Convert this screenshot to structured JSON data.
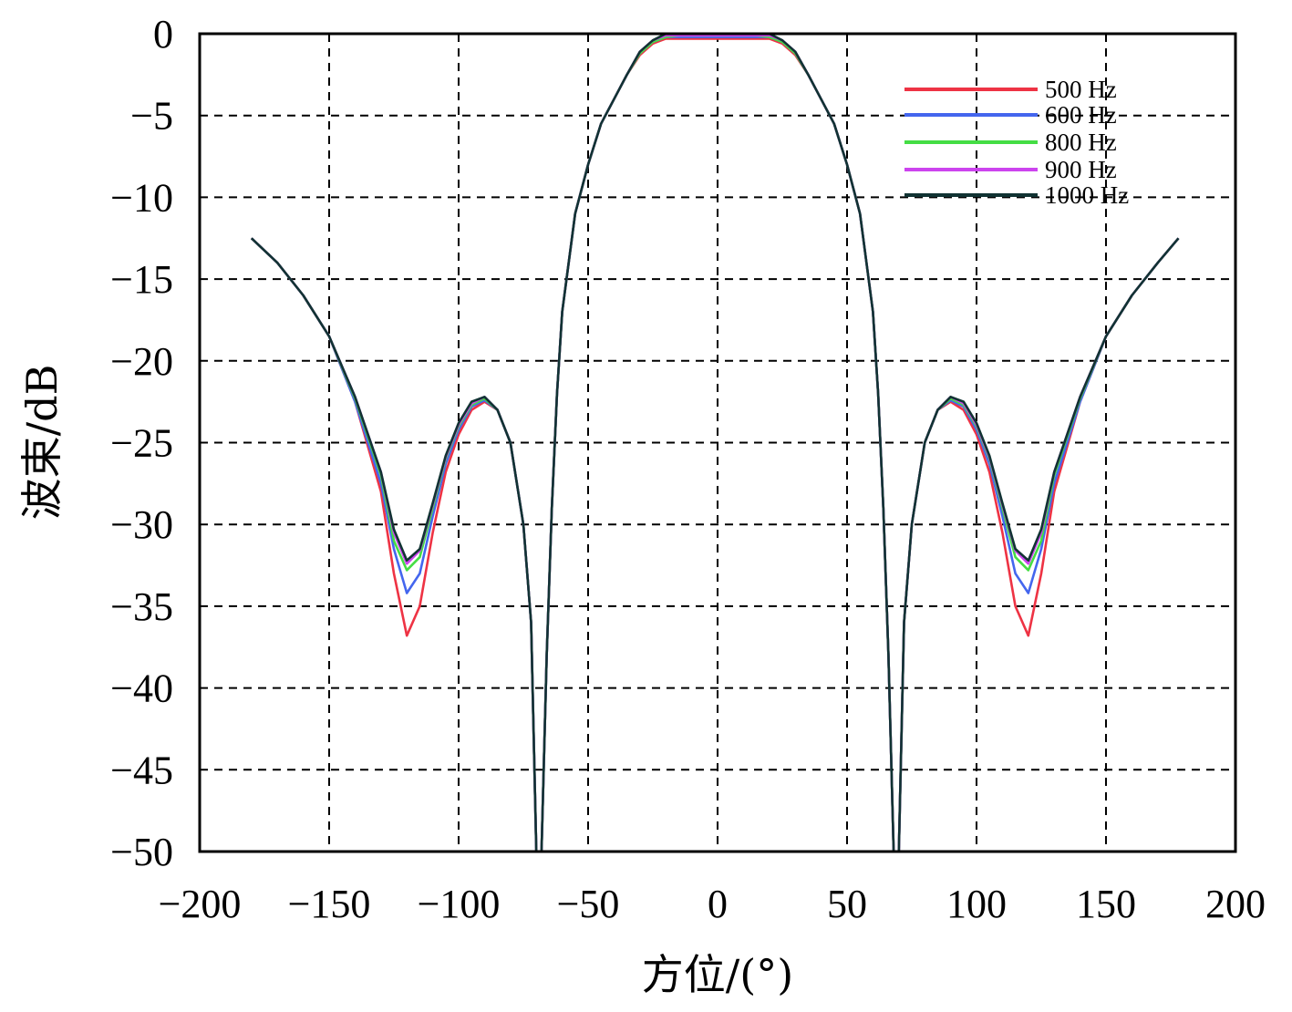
{
  "chart_data": {
    "type": "line",
    "xlabel": "方位/(°)",
    "ylabel": "波束/dB",
    "xlim": [
      -200,
      200
    ],
    "ylim": [
      -50,
      0
    ],
    "x_ticks": [
      "−200",
      "−150",
      "−100",
      "−50",
      "0",
      "50",
      "100",
      "150",
      "200"
    ],
    "y_ticks": [
      "0",
      "−5",
      "−10",
      "−15",
      "−20",
      "−25",
      "−30",
      "−35",
      "−40",
      "−45",
      "−50"
    ],
    "grid": true,
    "legend_position": "top-right",
    "x": [
      -180,
      -170,
      -160,
      -150,
      -140,
      -130,
      -125,
      -120,
      -115,
      -110,
      -105,
      -100,
      -95,
      -90,
      -85,
      -80,
      -75,
      -72,
      -70,
      -68,
      -66,
      -64,
      -62,
      -60,
      -55,
      -50,
      -45,
      -40,
      -35,
      -30,
      -25,
      -20,
      -15,
      -10,
      -5,
      0,
      5,
      10,
      15,
      20,
      25,
      30,
      35,
      40,
      45,
      50,
      55,
      60,
      62,
      64,
      66,
      68,
      70,
      72,
      75,
      80,
      85,
      90,
      95,
      100,
      105,
      110,
      115,
      120,
      125,
      130,
      140,
      150,
      160,
      170,
      178
    ],
    "series": [
      {
        "name": "500 Hz",
        "color": "#ee3344",
        "values": [
          -12.5,
          -14,
          -16,
          -18.5,
          -22.5,
          -28,
          -33,
          -36.8,
          -35,
          -30.5,
          -26.8,
          -24.5,
          -23,
          -22.5,
          -23,
          -25,
          -30,
          -36,
          -50,
          -50,
          -38,
          -29,
          -22,
          -17,
          -11,
          -8,
          -5.5,
          -4,
          -2.5,
          -1.3,
          -0.6,
          -0.3,
          -0.3,
          -0.3,
          -0.3,
          -0.3,
          -0.3,
          -0.3,
          -0.3,
          -0.3,
          -0.6,
          -1.3,
          -2.5,
          -4,
          -5.5,
          -8,
          -11,
          -17,
          -22,
          -29,
          -38,
          -50,
          -50,
          -36,
          -30,
          -25,
          -23,
          -22.5,
          -23,
          -24.5,
          -26.8,
          -30.5,
          -35,
          -36.8,
          -33,
          -28,
          -22.5,
          -18.5,
          -16,
          -14,
          -12.5
        ]
      },
      {
        "name": "600 Hz",
        "color": "#4466ee",
        "values": [
          -12.5,
          -14,
          -16,
          -18.5,
          -22.5,
          -27.5,
          -31.5,
          -34.2,
          -33,
          -29.5,
          -26.3,
          -24.2,
          -22.8,
          -22.4,
          -23,
          -25,
          -30,
          -36,
          -50,
          -50,
          -38,
          -29,
          -22,
          -17,
          -11,
          -8,
          -5.5,
          -4,
          -2.5,
          -1.2,
          -0.5,
          -0.2,
          -0.2,
          -0.2,
          -0.2,
          -0.2,
          -0.2,
          -0.2,
          -0.2,
          -0.2,
          -0.5,
          -1.2,
          -2.5,
          -4,
          -5.5,
          -8,
          -11,
          -17,
          -22,
          -29,
          -38,
          -50,
          -50,
          -36,
          -30,
          -25,
          -23,
          -22.4,
          -22.8,
          -24.2,
          -26.3,
          -29.5,
          -33,
          -34.2,
          -31.5,
          -27.5,
          -22.5,
          -18.5,
          -16,
          -14,
          -12.5
        ]
      },
      {
        "name": "800 Hz",
        "color": "#44dd44",
        "values": [
          -12.5,
          -14,
          -16,
          -18.5,
          -22.3,
          -27,
          -31,
          -32.8,
          -32,
          -29,
          -26,
          -24,
          -22.7,
          -22.3,
          -23,
          -25,
          -30,
          -36,
          -50,
          -50,
          -38,
          -29,
          -22,
          -17,
          -11,
          -8,
          -5.5,
          -4,
          -2.5,
          -1.2,
          -0.5,
          -0.2,
          -0.1,
          -0.1,
          -0.1,
          -0.1,
          -0.1,
          -0.1,
          -0.1,
          -0.2,
          -0.5,
          -1.2,
          -2.5,
          -4,
          -5.5,
          -8,
          -11,
          -17,
          -22,
          -29,
          -38,
          -50,
          -50,
          -36,
          -30,
          -25,
          -23,
          -22.3,
          -22.7,
          -24,
          -26,
          -29,
          -32,
          -32.8,
          -31,
          -27,
          -22.3,
          -18.5,
          -16,
          -14,
          -12.5
        ]
      },
      {
        "name": "900 Hz",
        "color": "#cc44ee",
        "values": [
          -12.5,
          -14,
          -16,
          -18.5,
          -22.2,
          -26.8,
          -30.5,
          -32.4,
          -31.6,
          -28.8,
          -25.9,
          -23.9,
          -22.6,
          -22.2,
          -23,
          -25,
          -30,
          -36,
          -50,
          -50,
          -38,
          -29,
          -22,
          -17,
          -11,
          -8,
          -5.5,
          -4,
          -2.5,
          -1.1,
          -0.4,
          -0.1,
          -0.1,
          -0.1,
          -0.1,
          -0.1,
          -0.1,
          -0.1,
          -0.1,
          -0.1,
          -0.4,
          -1.1,
          -2.5,
          -4,
          -5.5,
          -8,
          -11,
          -17,
          -22,
          -29,
          -38,
          -50,
          -50,
          -36,
          -30,
          -25,
          -23,
          -22.2,
          -22.6,
          -23.9,
          -25.9,
          -28.8,
          -31.6,
          -32.4,
          -30.5,
          -26.8,
          -22.2,
          -18.5,
          -16,
          -14,
          -12.5
        ]
      },
      {
        "name": "1000 Hz",
        "color": "#113333",
        "values": [
          -12.5,
          -14,
          -16,
          -18.5,
          -22.2,
          -26.8,
          -30.3,
          -32.2,
          -31.5,
          -28.7,
          -25.8,
          -23.8,
          -22.5,
          -22.2,
          -23,
          -25,
          -30,
          -36,
          -50,
          -50,
          -38,
          -29,
          -22,
          -17,
          -11,
          -8,
          -5.5,
          -4,
          -2.5,
          -1.1,
          -0.4,
          0,
          0,
          0,
          0,
          0,
          0,
          0,
          0,
          0,
          -0.4,
          -1.1,
          -2.5,
          -4,
          -5.5,
          -8,
          -11,
          -17,
          -22,
          -29,
          -38,
          -50,
          -50,
          -36,
          -30,
          -25,
          -23,
          -22.2,
          -22.5,
          -23.8,
          -25.8,
          -28.7,
          -31.5,
          -32.2,
          -30.3,
          -26.8,
          -22.2,
          -18.5,
          -16,
          -14,
          -12.5
        ]
      }
    ]
  }
}
